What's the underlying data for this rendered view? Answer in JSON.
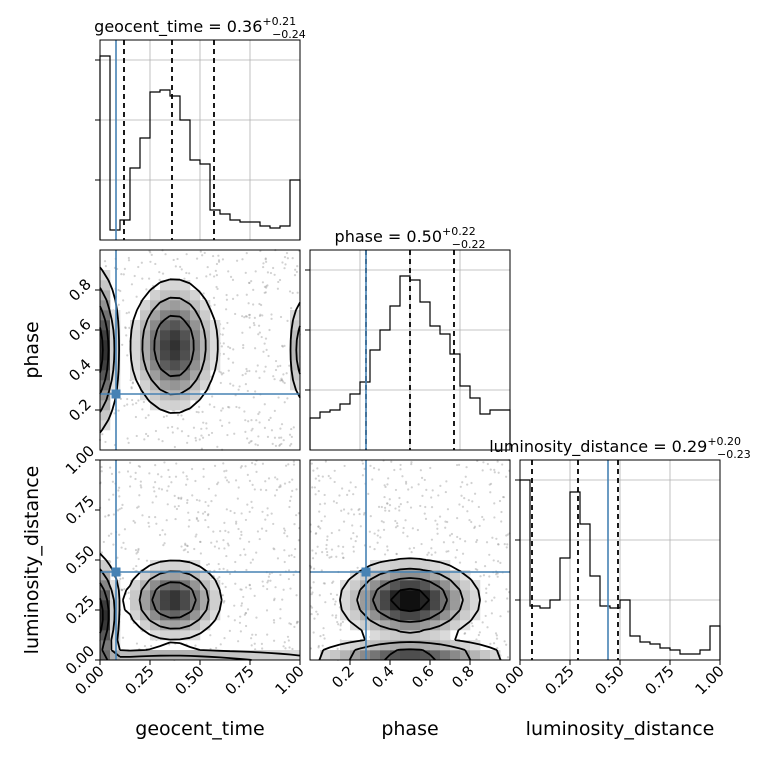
{
  "truth_color": "#4682b4",
  "chart_data": [
    {
      "type": "histogram",
      "panel": "geocent_time-marginal",
      "title": "geocent_time = 0.36",
      "title_sup": "+0.21",
      "title_sub": "−0.24",
      "xlim": [
        0,
        1
      ],
      "bin_edges": [
        0.0,
        0.05,
        0.1,
        0.15,
        0.2,
        0.25,
        0.3,
        0.35,
        0.4,
        0.45,
        0.5,
        0.55,
        0.6,
        0.65,
        0.7,
        0.75,
        0.8,
        0.85,
        0.9,
        0.95,
        1.0
      ],
      "density": [
        0.92,
        0.05,
        0.1,
        0.36,
        0.51,
        0.74,
        0.75,
        0.72,
        0.6,
        0.4,
        0.38,
        0.15,
        0.13,
        0.1,
        0.09,
        0.09,
        0.07,
        0.06,
        0.07,
        0.3
      ],
      "ylim": [
        0,
        1
      ],
      "y_ticks": [
        0.3,
        0.6,
        0.9
      ],
      "quantiles": [
        0.12,
        0.36,
        0.57
      ],
      "truth": 0.08,
      "grid": true
    },
    {
      "type": "histogram",
      "panel": "phase-marginal",
      "title": "phase = 0.50",
      "title_sup": "+0.22",
      "title_sub": "−0.22",
      "xlim": [
        0,
        1
      ],
      "x_ticks": [
        0.2,
        0.4,
        0.6,
        0.8
      ],
      "x_tick_labels": [
        "0.2",
        "0.4",
        "0.6",
        "0.8"
      ],
      "bin_edges": [
        0.0,
        0.05,
        0.1,
        0.15,
        0.2,
        0.25,
        0.3,
        0.35,
        0.4,
        0.45,
        0.5,
        0.55,
        0.6,
        0.65,
        0.7,
        0.75,
        0.8,
        0.85,
        0.9,
        0.95,
        1.0
      ],
      "density": [
        0.16,
        0.19,
        0.2,
        0.23,
        0.28,
        0.34,
        0.5,
        0.6,
        0.72,
        0.87,
        0.85,
        0.74,
        0.62,
        0.58,
        0.48,
        0.32,
        0.26,
        0.18,
        0.2,
        0.2
      ],
      "ylim": [
        0,
        1
      ],
      "y_ticks": [
        0.3,
        0.6,
        0.9
      ],
      "quantiles": [
        0.28,
        0.5,
        0.72
      ],
      "truth": 0.28,
      "xlabel": "phase",
      "grid": true
    },
    {
      "type": "histogram",
      "panel": "luminosity_distance-marginal",
      "title": "luminosity_distance = 0.29",
      "title_sup": "+0.20",
      "title_sub": "−0.23",
      "xlim": [
        0,
        1
      ],
      "x_ticks": [
        0.0,
        0.25,
        0.5,
        0.75,
        1.0
      ],
      "x_tick_labels": [
        "0.00",
        "0.25",
        "0.50",
        "0.75",
        "1.00"
      ],
      "bin_edges": [
        0.0,
        0.05,
        0.1,
        0.15,
        0.2,
        0.25,
        0.3,
        0.35,
        0.4,
        0.45,
        0.5,
        0.55,
        0.6,
        0.65,
        0.7,
        0.75,
        0.8,
        0.85,
        0.9,
        0.95,
        1.0
      ],
      "density": [
        0.9,
        0.27,
        0.26,
        0.3,
        0.51,
        0.84,
        0.68,
        0.42,
        0.27,
        0.26,
        0.3,
        0.12,
        0.09,
        0.08,
        0.06,
        0.05,
        0.03,
        0.03,
        0.05,
        0.17
      ],
      "ylim": [
        0,
        1
      ],
      "y_ticks": [
        0.3,
        0.6,
        0.9
      ],
      "quantiles": [
        0.06,
        0.29,
        0.49
      ],
      "truth": 0.44,
      "xlabel": "luminosity_distance",
      "grid": true
    },
    {
      "type": "2d-density",
      "panel": "geocent_time-vs-phase",
      "x": "geocent_time",
      "y": "phase",
      "xlim": [
        0,
        1
      ],
      "ylim": [
        0,
        1
      ],
      "y_ticks": [
        0.2,
        0.4,
        0.6,
        0.8
      ],
      "y_tick_labels": [
        "0.2",
        "0.4",
        "0.6",
        "0.8"
      ],
      "ylabel": "phase",
      "truth": [
        0.08,
        0.28
      ],
      "modes": [
        [
          0.37,
          0.52,
          0.11,
          0.17,
          1.0
        ],
        [
          0.0,
          0.5,
          0.04,
          0.2,
          1.2
        ],
        [
          1.0,
          0.5,
          0.03,
          0.15,
          0.5
        ]
      ]
    },
    {
      "type": "2d-density",
      "panel": "geocent_time-vs-luminosity_distance",
      "x": "geocent_time",
      "y": "luminosity_distance",
      "xlim": [
        0,
        1
      ],
      "ylim": [
        0,
        1
      ],
      "x_ticks": [
        0.0,
        0.25,
        0.5,
        0.75,
        1.0
      ],
      "x_tick_labels": [
        "0.00",
        "0.25",
        "0.50",
        "0.75",
        "1.00"
      ],
      "y_ticks": [
        0.0,
        0.25,
        0.5,
        0.75,
        1.0
      ],
      "y_tick_labels": [
        "0.00",
        "0.25",
        "0.50",
        "0.75",
        "1.00"
      ],
      "xlabel": "geocent_time",
      "ylabel": "luminosity_distance",
      "truth": [
        0.08,
        0.44
      ],
      "modes": [
        [
          0.37,
          0.3,
          0.12,
          0.1,
          1.0
        ],
        [
          0.0,
          0.22,
          0.04,
          0.15,
          1.2
        ],
        [
          0.35,
          0.0,
          0.5,
          0.03,
          0.5
        ]
      ]
    },
    {
      "type": "2d-density",
      "panel": "phase-vs-luminosity_distance",
      "x": "phase",
      "y": "luminosity_distance",
      "xlim": [
        0,
        1
      ],
      "ylim": [
        0,
        1
      ],
      "truth": [
        0.28,
        0.44
      ],
      "modes": [
        [
          0.5,
          0.3,
          0.17,
          0.1,
          1.0
        ],
        [
          0.5,
          0.02,
          0.25,
          0.04,
          0.7
        ]
      ]
    }
  ]
}
